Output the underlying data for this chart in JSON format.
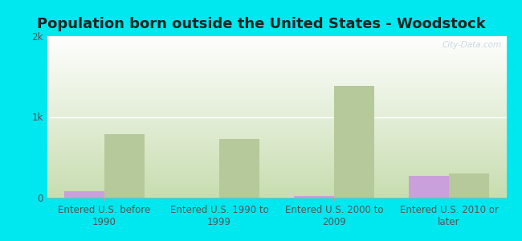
{
  "title": "Population born outside the United States - Woodstock",
  "categories": [
    "Entered U.S. before\n1990",
    "Entered U.S. 1990 to\n1999",
    "Entered U.S. 2000 to\n2009",
    "Entered U.S. 2010 or\nlater"
  ],
  "native_values": [
    75,
    0,
    15,
    270
  ],
  "foreign_born_values": [
    790,
    730,
    1380,
    300
  ],
  "native_color": "#c9a0dc",
  "foreign_born_color": "#b5c99a",
  "background_outer": "#00e8ef",
  "background_plot_top": "#ffffff",
  "background_plot_bottom": "#c8ddb0",
  "ylim": [
    0,
    2000
  ],
  "yticks": [
    0,
    1000,
    2000
  ],
  "ytick_labels": [
    "0",
    "1k",
    "2k"
  ],
  "bar_width": 0.35,
  "title_fontsize": 13,
  "tick_label_fontsize": 8.5,
  "legend_fontsize": 9.5,
  "watermark": "City-Data.com",
  "tick_color": "#555555"
}
